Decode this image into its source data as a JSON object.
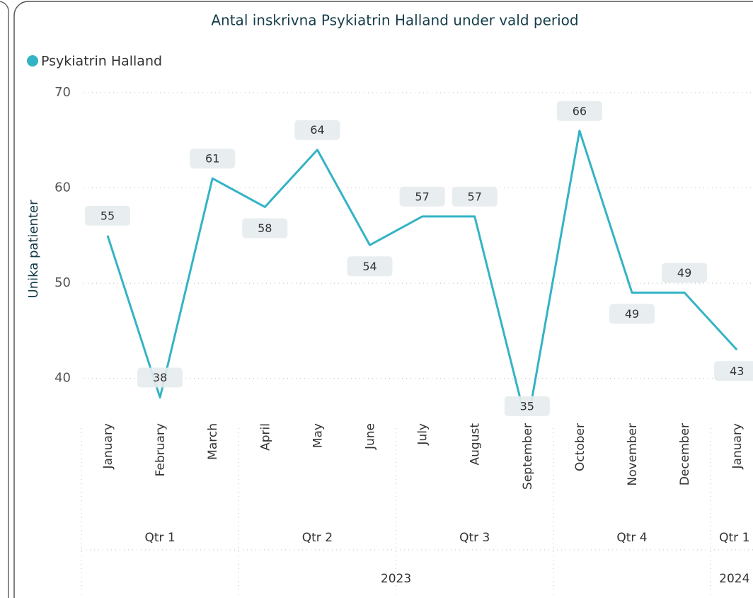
{
  "chart_data": {
    "type": "line",
    "title": "Antal inskrivna Psykiatrin Halland under vald period",
    "y_label": "Unika patienter",
    "categories": [
      "January",
      "February",
      "March",
      "April",
      "May",
      "June",
      "July",
      "August",
      "September",
      "October",
      "November",
      "December",
      "January"
    ],
    "quarters": [
      "Qtr 1",
      "Qtr 2",
      "Qtr 3",
      "Qtr 4",
      "Qtr 1"
    ],
    "years": [
      "2023",
      "2024"
    ],
    "series": [
      {
        "name": "Psykiatrin Halland",
        "color": "#34b3c5",
        "values": [
          55,
          38,
          61,
          58,
          64,
          54,
          57,
          57,
          35,
          66,
          49,
          49,
          43
        ]
      }
    ],
    "ylim": [
      37,
      70
    ],
    "yticks": [
      40,
      50,
      60,
      70
    ],
    "grid": true
  }
}
